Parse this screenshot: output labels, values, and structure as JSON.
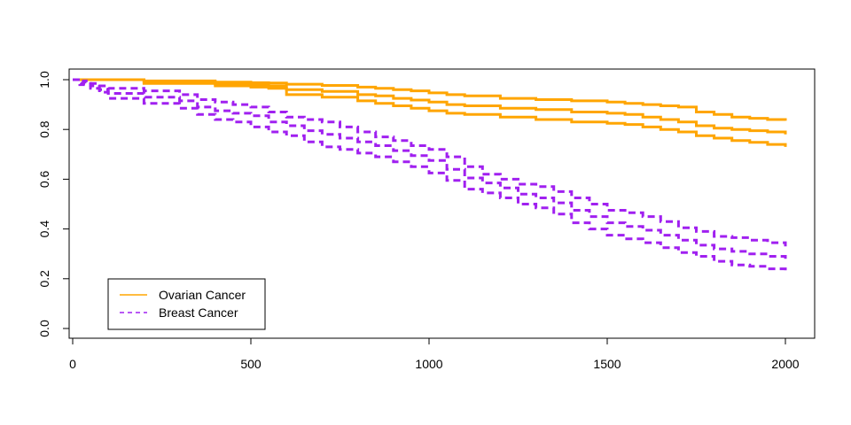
{
  "chart_data": {
    "type": "line",
    "title": "",
    "xlabel": "",
    "ylabel": "",
    "xlim": [
      0,
      2000
    ],
    "ylim": [
      0,
      1
    ],
    "x_ticks": [
      "0",
      "500",
      "1000",
      "1500",
      "2000"
    ],
    "y_ticks": [
      "0.0",
      "0.2",
      "0.4",
      "0.6",
      "0.8",
      "1.0"
    ],
    "grid": false,
    "legend_position": "bottom-left",
    "legend": [
      {
        "label": "Ovarian Cancer",
        "color": "#FFA500",
        "style": "solid"
      },
      {
        "label": "Breast Cancer",
        "color": "#A020F0",
        "style": "dashed"
      }
    ],
    "series": [
      {
        "group": "Ovarian Cancer",
        "color": "#FFA500",
        "style": "solid",
        "x": [
          0,
          200,
          400,
          500,
          550,
          600,
          700,
          800,
          850,
          900,
          950,
          1000,
          1050,
          1100,
          1200,
          1300,
          1400,
          1500,
          1550,
          1600,
          1650,
          1700,
          1750,
          1800,
          1850,
          1900,
          1950,
          2000
        ],
        "y": [
          1.0,
          0.995,
          0.99,
          0.988,
          0.987,
          0.982,
          0.977,
          0.97,
          0.965,
          0.96,
          0.955,
          0.947,
          0.94,
          0.935,
          0.925,
          0.92,
          0.915,
          0.91,
          0.905,
          0.9,
          0.895,
          0.89,
          0.87,
          0.86,
          0.85,
          0.845,
          0.84,
          0.835
        ]
      },
      {
        "group": "Ovarian Cancer",
        "color": "#FFA500",
        "style": "solid",
        "x": [
          0,
          200,
          400,
          500,
          550,
          600,
          700,
          800,
          850,
          900,
          950,
          1000,
          1050,
          1100,
          1200,
          1300,
          1400,
          1500,
          1550,
          1600,
          1650,
          1700,
          1750,
          1800,
          1850,
          1900,
          1950,
          2000
        ],
        "y": [
          1.0,
          0.99,
          0.982,
          0.98,
          0.975,
          0.96,
          0.953,
          0.94,
          0.935,
          0.925,
          0.918,
          0.91,
          0.9,
          0.895,
          0.885,
          0.88,
          0.87,
          0.865,
          0.86,
          0.85,
          0.84,
          0.83,
          0.815,
          0.805,
          0.8,
          0.795,
          0.79,
          0.78
        ]
      },
      {
        "group": "Ovarian Cancer",
        "color": "#FFA500",
        "style": "solid",
        "x": [
          0,
          200,
          400,
          500,
          550,
          600,
          700,
          800,
          850,
          900,
          950,
          1000,
          1050,
          1100,
          1200,
          1300,
          1400,
          1500,
          1550,
          1600,
          1650,
          1700,
          1750,
          1800,
          1850,
          1900,
          1950,
          2000
        ],
        "y": [
          1.0,
          0.985,
          0.975,
          0.97,
          0.965,
          0.94,
          0.93,
          0.915,
          0.905,
          0.895,
          0.885,
          0.875,
          0.865,
          0.86,
          0.85,
          0.84,
          0.83,
          0.825,
          0.82,
          0.81,
          0.8,
          0.79,
          0.775,
          0.765,
          0.755,
          0.748,
          0.74,
          0.73
        ]
      },
      {
        "group": "Breast Cancer",
        "color": "#A020F0",
        "style": "dashed",
        "x": [
          0,
          20,
          30,
          50,
          75,
          100,
          200,
          300,
          350,
          400,
          450,
          500,
          550,
          600,
          650,
          700,
          750,
          800,
          850,
          900,
          950,
          1000,
          1050,
          1100,
          1150,
          1200,
          1250,
          1300,
          1350,
          1400,
          1450,
          1500,
          1550,
          1600,
          1650,
          1700,
          1750,
          1800,
          1850,
          1900,
          1950,
          2000
        ],
        "y": [
          1.0,
          0.99,
          0.995,
          0.985,
          0.975,
          0.965,
          0.955,
          0.94,
          0.92,
          0.91,
          0.9,
          0.89,
          0.87,
          0.85,
          0.84,
          0.83,
          0.81,
          0.79,
          0.77,
          0.755,
          0.735,
          0.72,
          0.69,
          0.65,
          0.62,
          0.6,
          0.58,
          0.57,
          0.55,
          0.525,
          0.5,
          0.475,
          0.465,
          0.45,
          0.43,
          0.405,
          0.39,
          0.37,
          0.365,
          0.355,
          0.345,
          0.33
        ]
      },
      {
        "group": "Breast Cancer",
        "color": "#A020F0",
        "style": "dashed",
        "x": [
          0,
          20,
          30,
          50,
          75,
          100,
          200,
          300,
          350,
          400,
          450,
          500,
          550,
          600,
          650,
          700,
          750,
          800,
          850,
          900,
          950,
          1000,
          1050,
          1100,
          1150,
          1200,
          1250,
          1300,
          1350,
          1400,
          1450,
          1500,
          1550,
          1600,
          1650,
          1700,
          1750,
          1800,
          1850,
          1900,
          1950,
          2000
        ],
        "y": [
          1.0,
          0.985,
          0.99,
          0.975,
          0.96,
          0.945,
          0.93,
          0.915,
          0.89,
          0.875,
          0.865,
          0.855,
          0.83,
          0.815,
          0.795,
          0.78,
          0.765,
          0.75,
          0.735,
          0.715,
          0.695,
          0.675,
          0.64,
          0.605,
          0.585,
          0.565,
          0.54,
          0.525,
          0.505,
          0.475,
          0.45,
          0.425,
          0.41,
          0.395,
          0.375,
          0.355,
          0.335,
          0.32,
          0.31,
          0.3,
          0.29,
          0.27
        ]
      },
      {
        "group": "Breast Cancer",
        "color": "#A020F0",
        "style": "dashed",
        "x": [
          0,
          20,
          30,
          50,
          75,
          100,
          200,
          300,
          350,
          400,
          450,
          500,
          550,
          600,
          650,
          700,
          750,
          800,
          850,
          900,
          950,
          1000,
          1050,
          1100,
          1150,
          1200,
          1250,
          1300,
          1350,
          1400,
          1450,
          1500,
          1550,
          1600,
          1650,
          1700,
          1750,
          1800,
          1850,
          1900,
          1950,
          2000
        ],
        "y": [
          1.0,
          0.98,
          0.985,
          0.965,
          0.95,
          0.925,
          0.905,
          0.885,
          0.86,
          0.84,
          0.83,
          0.81,
          0.79,
          0.775,
          0.75,
          0.73,
          0.72,
          0.705,
          0.69,
          0.67,
          0.65,
          0.625,
          0.595,
          0.56,
          0.545,
          0.525,
          0.5,
          0.485,
          0.46,
          0.425,
          0.4,
          0.375,
          0.36,
          0.345,
          0.325,
          0.305,
          0.29,
          0.27,
          0.255,
          0.25,
          0.24,
          0.22
        ]
      }
    ]
  }
}
